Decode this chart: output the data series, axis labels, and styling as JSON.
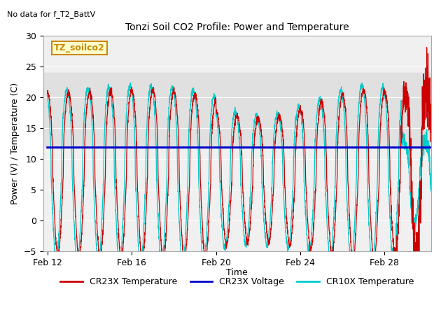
{
  "title": "Tonzi Soil CO2 Profile: Power and Temperature",
  "top_left_note": "No data for f_T2_BattV",
  "ylabel": "Power (V) / Temperature (C)",
  "xlabel": "Time",
  "ylim": [
    -5,
    30
  ],
  "yticks": [
    -5,
    0,
    5,
    10,
    15,
    20,
    25,
    30
  ],
  "xtick_labels": [
    "Feb 12",
    "Feb 16",
    "Feb 20",
    "Feb 24",
    "Feb 28"
  ],
  "xtick_positions": [
    0,
    4,
    8,
    12,
    16
  ],
  "voltage_value": 11.85,
  "bg_band_low": 12,
  "bg_band_high": 24,
  "bg_color": "#e0e0e0",
  "plot_bg": "#f0f0f0",
  "legend_entries": [
    "CR23X Temperature",
    "CR23X Voltage",
    "CR10X Temperature"
  ],
  "legend_colors": [
    "#cc0000",
    "#0000cc",
    "#00cccc"
  ],
  "cr23x_color": "#cc0000",
  "cr10x_color": "#00cccc",
  "voltage_color": "#0000cc",
  "annotation_box": "TZ_soilco2",
  "annotation_color": "#cc8800",
  "annotation_bg": "#ffffcc",
  "period": 1.0,
  "n_points": 3000
}
